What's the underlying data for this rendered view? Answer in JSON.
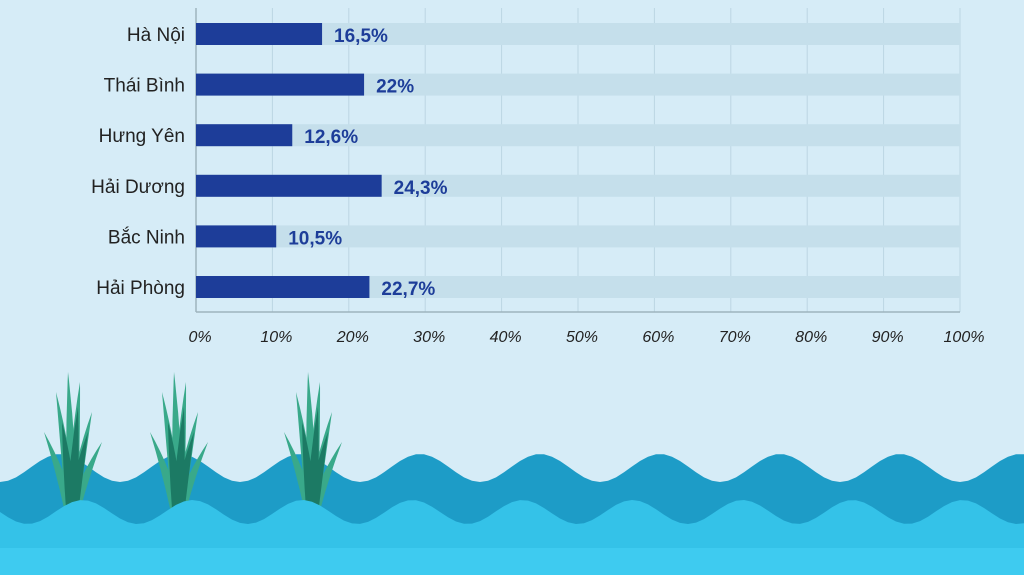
{
  "chart_data": {
    "type": "bar",
    "orientation": "horizontal",
    "categories": [
      "Hà Nội",
      "Thái Bình",
      "Hưng Yên",
      "Hải Dương",
      "Bắc Ninh",
      "Hải Phòng"
    ],
    "values": [
      16.5,
      22,
      12.6,
      24.3,
      10.5,
      22.7
    ],
    "value_labels": [
      "16,5%",
      "22%",
      "12,6%",
      "24,3%",
      "10,5%",
      "22,7%"
    ],
    "xlim": [
      0,
      100
    ],
    "x_ticks": [
      0,
      10,
      20,
      30,
      40,
      50,
      60,
      70,
      80,
      90,
      100
    ],
    "x_tick_labels": [
      "0%",
      "10%",
      "20%",
      "30%",
      "40%",
      "50%",
      "60%",
      "70%",
      "80%",
      "90%",
      "100%"
    ],
    "grid": true,
    "title": "",
    "xlabel": "",
    "ylabel": ""
  },
  "colors": {
    "background": "#d6ecf7",
    "bar": "#1d3d99",
    "track": "#c5dfeb",
    "value_text": "#1d3d99",
    "wave_back": "#1d9cc7",
    "wave_front": "#34c2e8",
    "plant_light": "#39a98a",
    "plant_dark": "#1c7a64"
  },
  "decoration": {
    "waves_icon": "water-waves",
    "plant_icon": "water-reed-plant"
  }
}
